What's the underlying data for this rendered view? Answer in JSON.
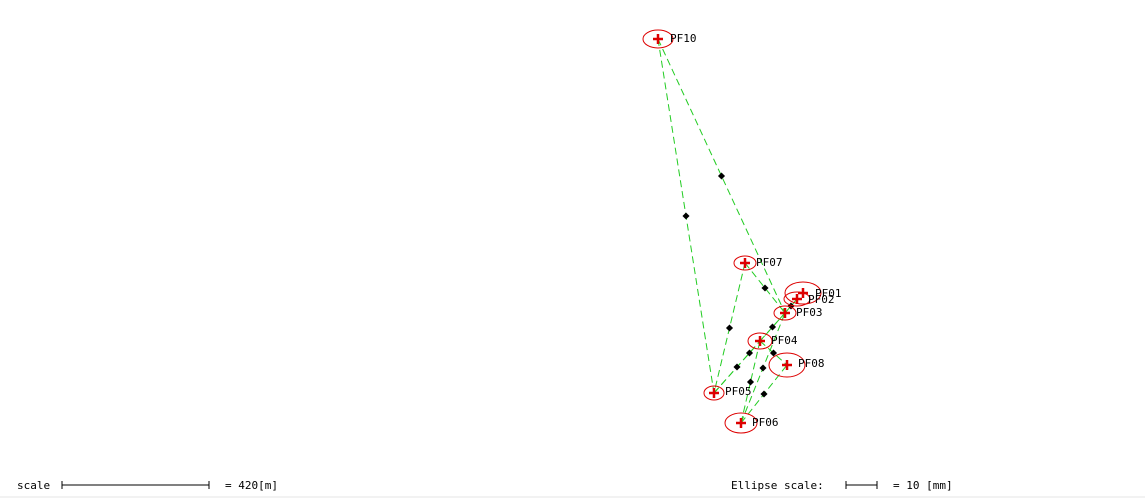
{
  "colors": {
    "background": "#ffffff",
    "observation_line": "#22cc22",
    "ellipse": "#dd0000",
    "point_marker": "#dd0000",
    "midpoint_marker": "#000000",
    "text": "#000000"
  },
  "points": [
    {
      "id": "PF10",
      "label": "PF10"
    },
    {
      "id": "PF07",
      "label": "PF07"
    },
    {
      "id": "PF01",
      "label": "PF01"
    },
    {
      "id": "PF02",
      "label": "PF02"
    },
    {
      "id": "PF03",
      "label": "PF03"
    },
    {
      "id": "PF04",
      "label": "PF04"
    },
    {
      "id": "PF08",
      "label": "PF08"
    },
    {
      "id": "PF05",
      "label": "PF05"
    },
    {
      "id": "PF06",
      "label": "PF06"
    }
  ],
  "observations": [
    [
      "PF10",
      "PF05"
    ],
    [
      "PF10",
      "PF03"
    ],
    [
      "PF07",
      "PF05"
    ],
    [
      "PF07",
      "PF03"
    ],
    [
      "PF05",
      "PF04"
    ],
    [
      "PF05",
      "PF03"
    ],
    [
      "PF06",
      "PF04"
    ],
    [
      "PF06",
      "PF03"
    ],
    [
      "PF06",
      "PF08"
    ],
    [
      "PF04",
      "PF03"
    ],
    [
      "PF03",
      "PF02"
    ],
    [
      "PF04",
      "PF08"
    ]
  ],
  "scale_bar": {
    "label": "scale",
    "value_text": "= 420[m]"
  },
  "ellipse_scale": {
    "label": "Ellipse scale:",
    "value_text": "= 10 [mm]"
  }
}
